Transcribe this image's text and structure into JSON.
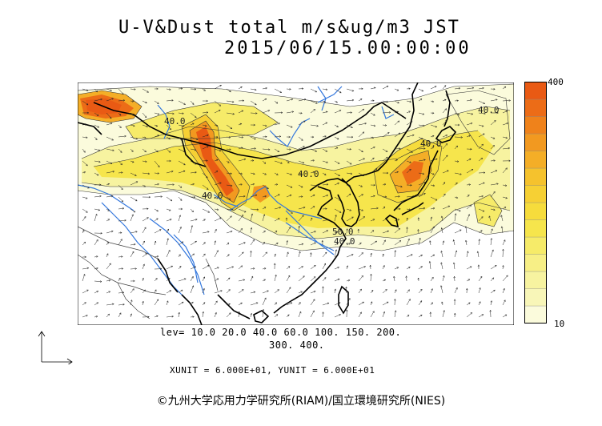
{
  "title": {
    "line1": "U-V&Dust total m/s&ug/m3 JST",
    "line2": "2015/06/15.00:00:00"
  },
  "colorbar": {
    "max_label": "400",
    "min_label": "10",
    "colors": [
      "#fbfbdc",
      "#f8f6b8",
      "#f7f3a0",
      "#f7ef86",
      "#f6eb69",
      "#f6e54c",
      "#f6dc3c",
      "#f6d034",
      "#f5c22d",
      "#f4ae27",
      "#f29920",
      "#ef821b",
      "#ec6c17",
      "#e95a14"
    ]
  },
  "levels": {
    "line1": "lev= 10.0 20.0 40.0 60.0 100. 150. 200.",
    "line2": "300. 400."
  },
  "units": "XUNIT = 6.000E+01, YUNIT = 6.000E+01",
  "contour_labels": [
    "40.0",
    "40.0",
    "40.0",
    "40.0",
    "50.0",
    "40.0",
    "40.0"
  ],
  "copyright": "©九州大学応用力学研究所(RIAM)/国立環境研究所(NIES)"
}
